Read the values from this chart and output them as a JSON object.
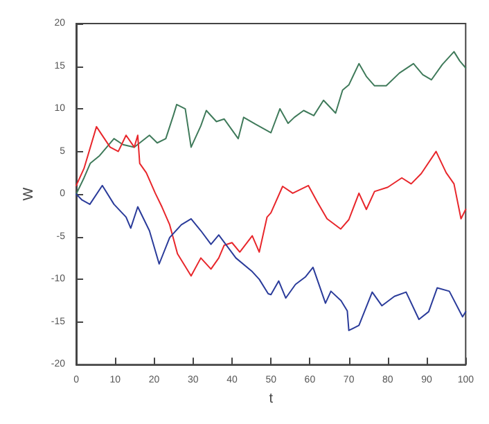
{
  "chart_data": {
    "type": "line",
    "xlabel": "t",
    "ylabel": "W",
    "xlim": [
      0,
      100
    ],
    "ylim": [
      -20,
      20
    ],
    "xticks": [
      0,
      10,
      20,
      30,
      40,
      50,
      60,
      70,
      80,
      90,
      100
    ],
    "yticks": [
      -20,
      -15,
      -10,
      -5,
      0,
      5,
      10,
      15,
      20
    ],
    "grid": false,
    "marker": "none",
    "line_style": "solid",
    "series": [
      {
        "color": "#3f7a5a",
        "x": [
          0,
          2,
          3.6,
          6,
          9.7,
          12,
          14.9,
          18.8,
          20.8,
          23,
          25,
          25.8,
          28,
          29.5,
          32,
          33.4,
          36,
          38,
          41.6,
          43,
          46,
          50,
          52.3,
          54.4,
          56,
          58.4,
          61,
          63.5,
          66.6,
          68.4,
          70,
          72.6,
          74.5,
          76.6,
          79.6,
          83,
          86.6,
          89,
          91.2,
          94,
          97,
          98.5,
          100
        ],
        "values": [
          0,
          1.9,
          3.6,
          4.5,
          6.5,
          5.8,
          5.5,
          6.9,
          6,
          6.5,
          9.3,
          10.5,
          10,
          5.5,
          8,
          9.8,
          8.5,
          8.8,
          6.5,
          9,
          8.2,
          7.2,
          10,
          8.3,
          9,
          9.8,
          9.2,
          11,
          9.5,
          12.2,
          12.8,
          15.3,
          13.8,
          12.7,
          12.7,
          14.2,
          15.3,
          14,
          13.4,
          15.2,
          16.7,
          15.6,
          14.8
        ]
      },
      {
        "color": "#e8262b",
        "x": [
          0,
          2,
          5.2,
          8.7,
          10.8,
          12.8,
          14.9,
          15.8,
          16.3,
          18,
          20.3,
          22,
          24,
          26,
          29.5,
          32,
          34.6,
          36.6,
          38,
          40,
          42,
          45.2,
          47,
          49,
          50,
          53,
          55.6,
          59.6,
          62,
          64.4,
          67.9,
          70,
          72.6,
          74.5,
          76.6,
          80,
          83.6,
          86,
          88.6,
          92.4,
          95,
          97,
          98.8,
          100
        ],
        "values": [
          1,
          3,
          7.9,
          5.5,
          5,
          6.9,
          5.5,
          6.9,
          3.6,
          2.5,
          0.1,
          -1.5,
          -3.6,
          -7,
          -9.6,
          -7.5,
          -8.8,
          -7.5,
          -6,
          -5.7,
          -6.8,
          -4.9,
          -6.8,
          -2.7,
          -2.2,
          0.9,
          0.1,
          1,
          -1,
          -2.9,
          -4.1,
          -3,
          0.1,
          -1.8,
          0.3,
          0.8,
          1.9,
          1.2,
          2.4,
          5,
          2.5,
          1.2,
          -2.9,
          -1.8
        ]
      },
      {
        "color": "#2a3b9a",
        "x": [
          0,
          1.5,
          3.5,
          6.7,
          9.7,
          12.8,
          14,
          15.8,
          18.8,
          21.3,
          24,
          27,
          29.5,
          32,
          34.6,
          36.6,
          41,
          45.2,
          47,
          49.3,
          50,
          52,
          53.8,
          56.3,
          58.9,
          60.8,
          64,
          65.4,
          68,
          69.6,
          70,
          72.6,
          76,
          78.5,
          81.7,
          84.7,
          88,
          90.5,
          92.7,
          95.8,
          99.2,
          100
        ],
        "values": [
          0,
          -0.7,
          -1.2,
          1,
          -1.2,
          -2.7,
          -4,
          -1.5,
          -4.3,
          -8.2,
          -5.1,
          -3.6,
          -2.9,
          -4.3,
          -5.9,
          -4.8,
          -7.5,
          -9.1,
          -10,
          -11.7,
          -11.8,
          -10.2,
          -12.2,
          -10.6,
          -9.7,
          -8.6,
          -12.8,
          -11.4,
          -12.5,
          -13.7,
          -16,
          -15.4,
          -11.5,
          -13.1,
          -12,
          -11.5,
          -14.7,
          -13.8,
          -11,
          -11.4,
          -14.4,
          -13.8
        ]
      }
    ]
  }
}
